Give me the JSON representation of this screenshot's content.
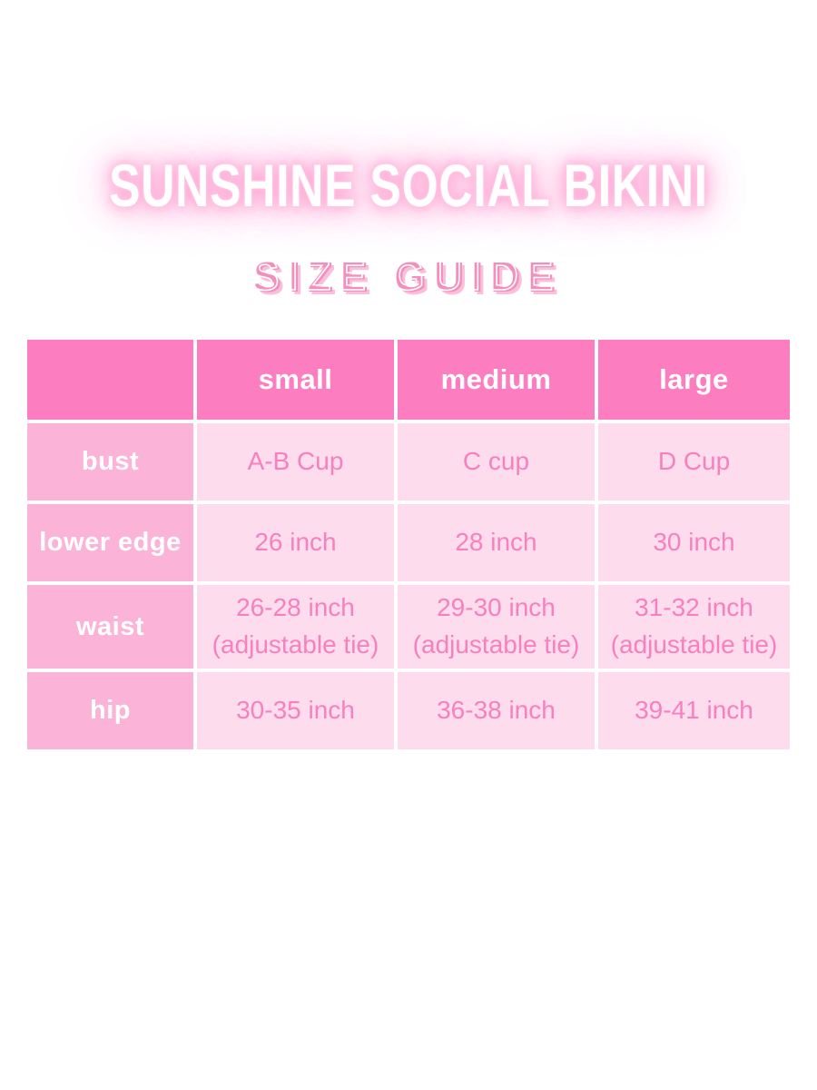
{
  "title": {
    "text": "SUNSHINE SOCIAL BIKINI"
  },
  "subtitle": {
    "text": "SIZE GUIDE"
  },
  "colors": {
    "page_bg": "#ffffff",
    "header_bg": "#fc7ec0",
    "label_bg": "#fbb4d8",
    "cell_bg": "#fddcee",
    "cell_text": "#f780be",
    "header_text": "#ffffff",
    "title_color": "#ffffff",
    "title_glow": "#ff9dce",
    "subtitle_color": "#f48fbd",
    "subtitle_shadow": "#f9bfdb"
  },
  "table": {
    "columns": [
      "",
      "small",
      "medium",
      "large"
    ],
    "rows": [
      {
        "label": "bust",
        "values": [
          {
            "main": "A-B Cup",
            "note": ""
          },
          {
            "main": "C cup",
            "note": ""
          },
          {
            "main": "D Cup",
            "note": ""
          }
        ]
      },
      {
        "label": "lower edge",
        "values": [
          {
            "main": "26 inch",
            "note": ""
          },
          {
            "main": "28 inch",
            "note": ""
          },
          {
            "main": "30 inch",
            "note": ""
          }
        ]
      },
      {
        "label": "waist",
        "values": [
          {
            "main": "26-28 inch",
            "note": "(adjustable tie)"
          },
          {
            "main": "29-30 inch",
            "note": "(adjustable tie)"
          },
          {
            "main": "31-32 inch",
            "note": "(adjustable tie)"
          }
        ]
      },
      {
        "label": "hip",
        "values": [
          {
            "main": "30-35 inch",
            "note": ""
          },
          {
            "main": "36-38 inch",
            "note": ""
          },
          {
            "main": "39-41 inch",
            "note": ""
          }
        ]
      }
    ]
  }
}
